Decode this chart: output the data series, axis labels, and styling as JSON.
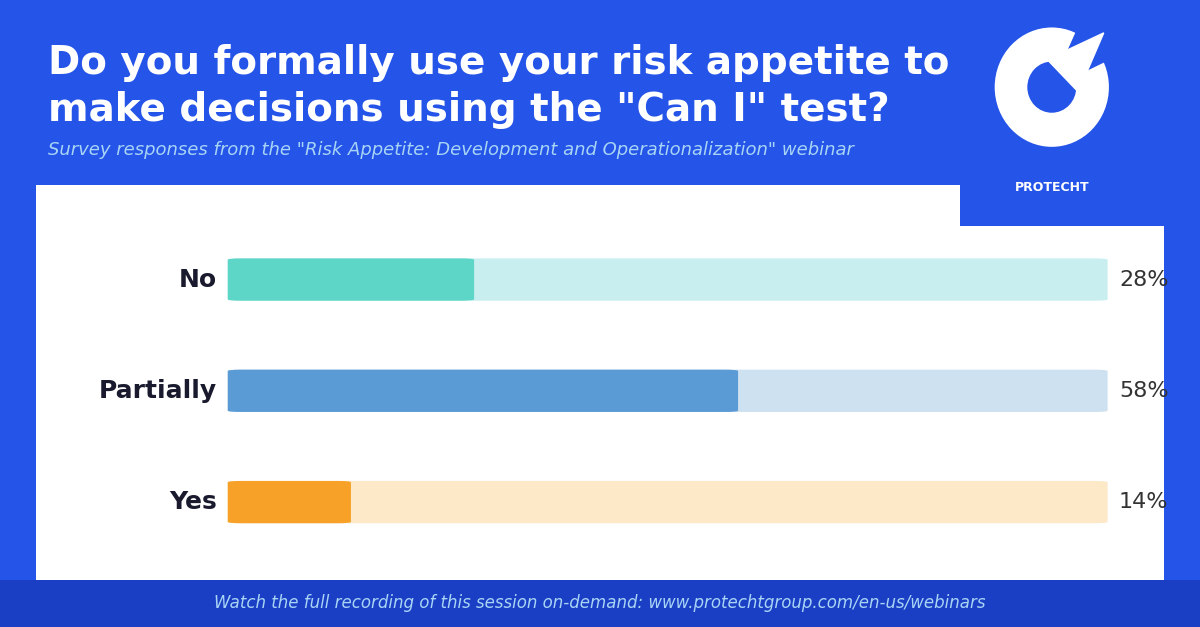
{
  "title_line1": "Do you formally use your risk appetite to",
  "title_line2": "make decisions using the \"Can I\" test?",
  "subtitle": "Survey responses from the \"Risk Appetite: Development and Operationalization\" webinar",
  "footer": "Watch the full recording of this session on-demand: www.protechtgroup.com/en-us/webinars",
  "background_color": "#2454e8",
  "chart_bg_color": "#ffffff",
  "footer_bg_color": "#1a3fc4",
  "categories": [
    "No",
    "Partially",
    "Yes"
  ],
  "values": [
    28,
    58,
    14
  ],
  "max_value": 100,
  "bar_colors": [
    "#5dd6c8",
    "#5b9bd5",
    "#f7a128"
  ],
  "bar_bg_colors": [
    "#c8eef0",
    "#cde1f0",
    "#fde8c8"
  ],
  "percentage_labels": [
    "28%",
    "58%",
    "14%"
  ],
  "title_color": "#ffffff",
  "subtitle_color": "#a8d4f5",
  "footer_color": "#a8d4f5",
  "label_color": "#1a1a2e",
  "pct_color": "#333333",
  "title_fontsize": 28,
  "subtitle_fontsize": 13,
  "label_fontsize": 18,
  "pct_fontsize": 16,
  "footer_fontsize": 12,
  "bar_height": 0.38,
  "protecht_label": "PROTECHT"
}
